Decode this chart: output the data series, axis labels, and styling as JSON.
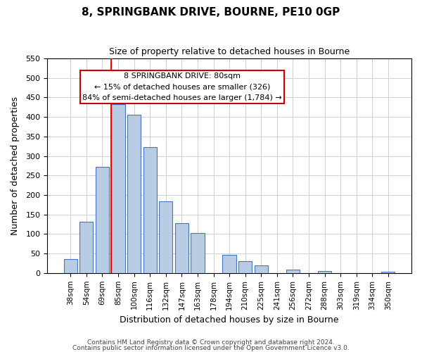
{
  "title": "8, SPRINGBANK DRIVE, BOURNE, PE10 0GP",
  "subtitle": "Size of property relative to detached houses in Bourne",
  "xlabel": "Distribution of detached houses by size in Bourne",
  "ylabel": "Number of detached properties",
  "bar_color": "#b8cce4",
  "bar_edge_color": "#4472c4",
  "categories": [
    "38sqm",
    "54sqm",
    "69sqm",
    "85sqm",
    "100sqm",
    "116sqm",
    "132sqm",
    "147sqm",
    "163sqm",
    "178sqm",
    "194sqm",
    "210sqm",
    "225sqm",
    "241sqm",
    "256sqm",
    "272sqm",
    "288sqm",
    "303sqm",
    "319sqm",
    "334sqm",
    "350sqm"
  ],
  "values": [
    35,
    132,
    272,
    432,
    405,
    323,
    183,
    127,
    103,
    0,
    46,
    30,
    20,
    0,
    8,
    0,
    5,
    0,
    0,
    0,
    3
  ],
  "ylim": [
    0,
    550
  ],
  "yticks": [
    0,
    50,
    100,
    150,
    200,
    250,
    300,
    350,
    400,
    450,
    500,
    550
  ],
  "vline_index": 3,
  "vline_color": "#ff0000",
  "annotation_title": "8 SPRINGBANK DRIVE: 80sqm",
  "annotation_line1": "← 15% of detached houses are smaller (326)",
  "annotation_line2": "84% of semi-detached houses are larger (1,784) →",
  "footer1": "Contains HM Land Registry data © Crown copyright and database right 2024.",
  "footer2": "Contains public sector information licensed under the Open Government Licence v3.0.",
  "background_color": "#ffffff",
  "grid_color": "#d0d0d0"
}
